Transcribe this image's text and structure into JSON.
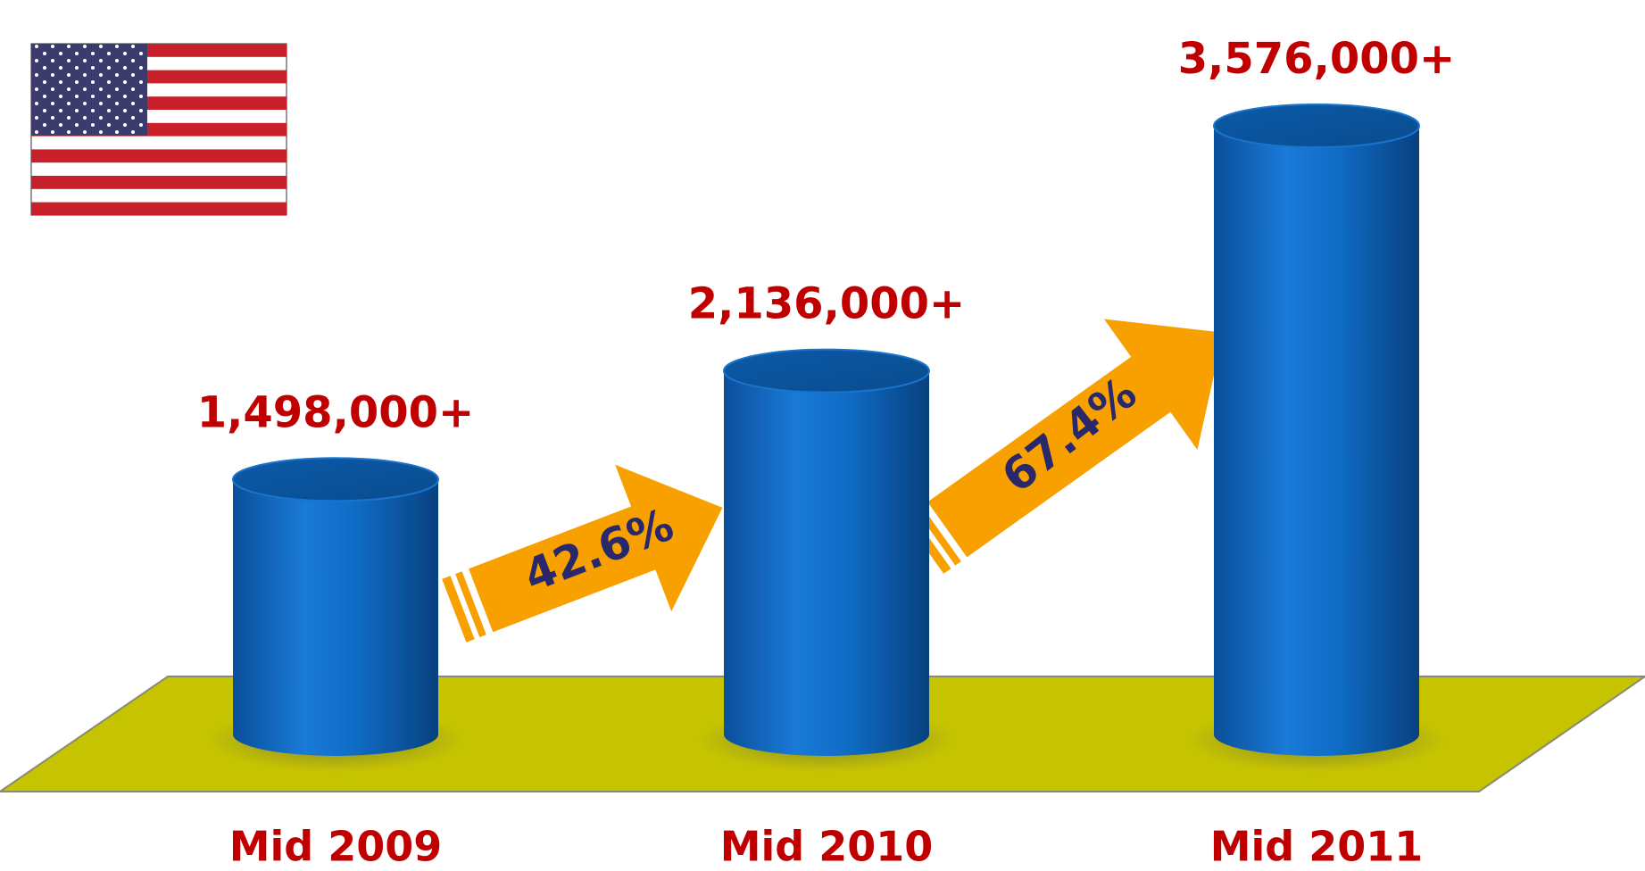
{
  "chart_data": {
    "type": "cylinder",
    "categories": [
      "Mid 2009",
      "Mid 2010",
      "Mid 2011"
    ],
    "series": [
      {
        "color": "#0a6cc8",
        "values": [
          1498000,
          2136000,
          3576000
        ],
        "value_labels": [
          "1,498,000+",
          "2,136,000+",
          "3,576,000+"
        ]
      }
    ],
    "annotations": [
      "42.6%",
      "67.4%"
    ]
  }
}
